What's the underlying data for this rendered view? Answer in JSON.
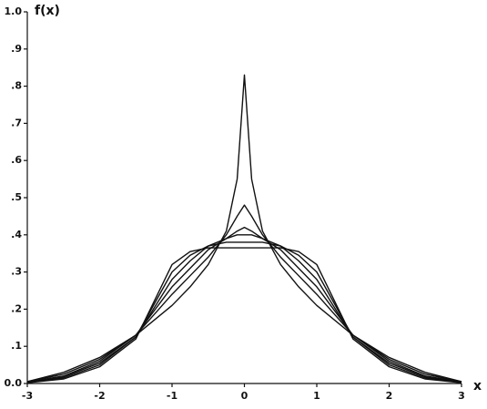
{
  "chart_data": {
    "type": "line",
    "ylabel": "f(x)",
    "xlabel": "x",
    "x": [
      -3,
      -2.5,
      -2,
      -1.5,
      -1,
      -0.75,
      -0.5,
      -0.25,
      -0.1,
      0,
      0.1,
      0.25,
      0.5,
      0.75,
      1,
      1.5,
      2,
      2.5,
      3
    ],
    "series": [
      {
        "color": "#111111",
        "values": [
          0.005,
          0.03,
          0.07,
          0.13,
          0.21,
          0.26,
          0.32,
          0.41,
          0.55,
          0.83,
          0.55,
          0.41,
          0.32,
          0.26,
          0.21,
          0.13,
          0.07,
          0.03,
          0.005
        ]
      },
      {
        "color": "#111111",
        "values": [
          0.005,
          0.025,
          0.065,
          0.13,
          0.24,
          0.29,
          0.34,
          0.4,
          0.45,
          0.48,
          0.45,
          0.4,
          0.34,
          0.29,
          0.24,
          0.13,
          0.065,
          0.025,
          0.005
        ]
      },
      {
        "color": "#111111",
        "values": [
          0.004,
          0.02,
          0.06,
          0.13,
          0.26,
          0.31,
          0.36,
          0.39,
          0.41,
          0.42,
          0.41,
          0.39,
          0.36,
          0.31,
          0.26,
          0.13,
          0.06,
          0.02,
          0.004
        ]
      },
      {
        "color": "#111111",
        "values": [
          0.003,
          0.018,
          0.055,
          0.125,
          0.28,
          0.33,
          0.37,
          0.39,
          0.4,
          0.4,
          0.4,
          0.39,
          0.37,
          0.33,
          0.28,
          0.125,
          0.055,
          0.018,
          0.003
        ]
      },
      {
        "color": "#111111",
        "values": [
          0.002,
          0.015,
          0.05,
          0.125,
          0.3,
          0.345,
          0.37,
          0.38,
          0.38,
          0.38,
          0.38,
          0.38,
          0.37,
          0.345,
          0.3,
          0.125,
          0.05,
          0.015,
          0.002
        ]
      },
      {
        "color": "#111111",
        "values": [
          0.002,
          0.012,
          0.045,
          0.12,
          0.32,
          0.355,
          0.365,
          0.365,
          0.365,
          0.365,
          0.365,
          0.365,
          0.365,
          0.355,
          0.32,
          0.12,
          0.045,
          0.012,
          0.002
        ]
      }
    ],
    "xlim": [
      -3,
      3
    ],
    "xticks": [
      -3,
      -2,
      -1,
      0,
      1,
      2,
      3
    ],
    "ylim": [
      0,
      1
    ],
    "yticks": [
      {
        "value": 0,
        "label": "0.0"
      },
      {
        "value": 0.1,
        "label": ".1"
      },
      {
        "value": 0.2,
        "label": ".2"
      },
      {
        "value": 0.3,
        "label": ".3"
      },
      {
        "value": 0.4,
        "label": ".4"
      },
      {
        "value": 0.5,
        "label": ".5"
      },
      {
        "value": 0.6,
        "label": ".6"
      },
      {
        "value": 0.7,
        "label": ".7"
      },
      {
        "value": 0.8,
        "label": ".8"
      },
      {
        "value": 0.9,
        "label": ".9"
      },
      {
        "value": 1,
        "label": "1.0"
      }
    ],
    "grid": false
  }
}
